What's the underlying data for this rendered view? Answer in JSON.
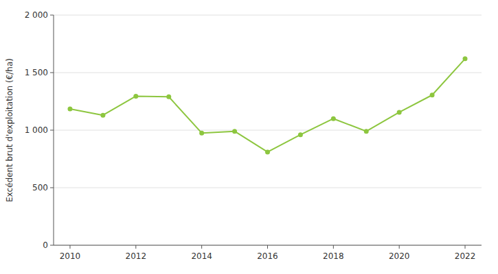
{
  "chart_data": {
    "type": "line",
    "y_label": "Excédent brut d'exploitation (€/ha)",
    "x": [
      2010,
      2011,
      2012,
      2013,
      2014,
      2015,
      2016,
      2017,
      2018,
      2019,
      2020,
      2021,
      2022
    ],
    "values": [
      1185,
      1130,
      1295,
      1290,
      975,
      990,
      810,
      960,
      1100,
      990,
      1155,
      1305,
      1620
    ],
    "color": "#8dc63f",
    "marker": "circle",
    "line_style": "solid",
    "xlim": [
      2009.5,
      2022.5
    ],
    "xticks": [
      2010,
      2012,
      2014,
      2016,
      2018,
      2020,
      2022
    ],
    "ylim": [
      0,
      2000
    ],
    "yticks": [
      0,
      500,
      {
        "value": 1000,
        "label": "1 000"
      },
      {
        "value": 1500,
        "label": "1 500"
      },
      {
        "value": 2000,
        "label": "2 000"
      }
    ],
    "grid": true
  }
}
